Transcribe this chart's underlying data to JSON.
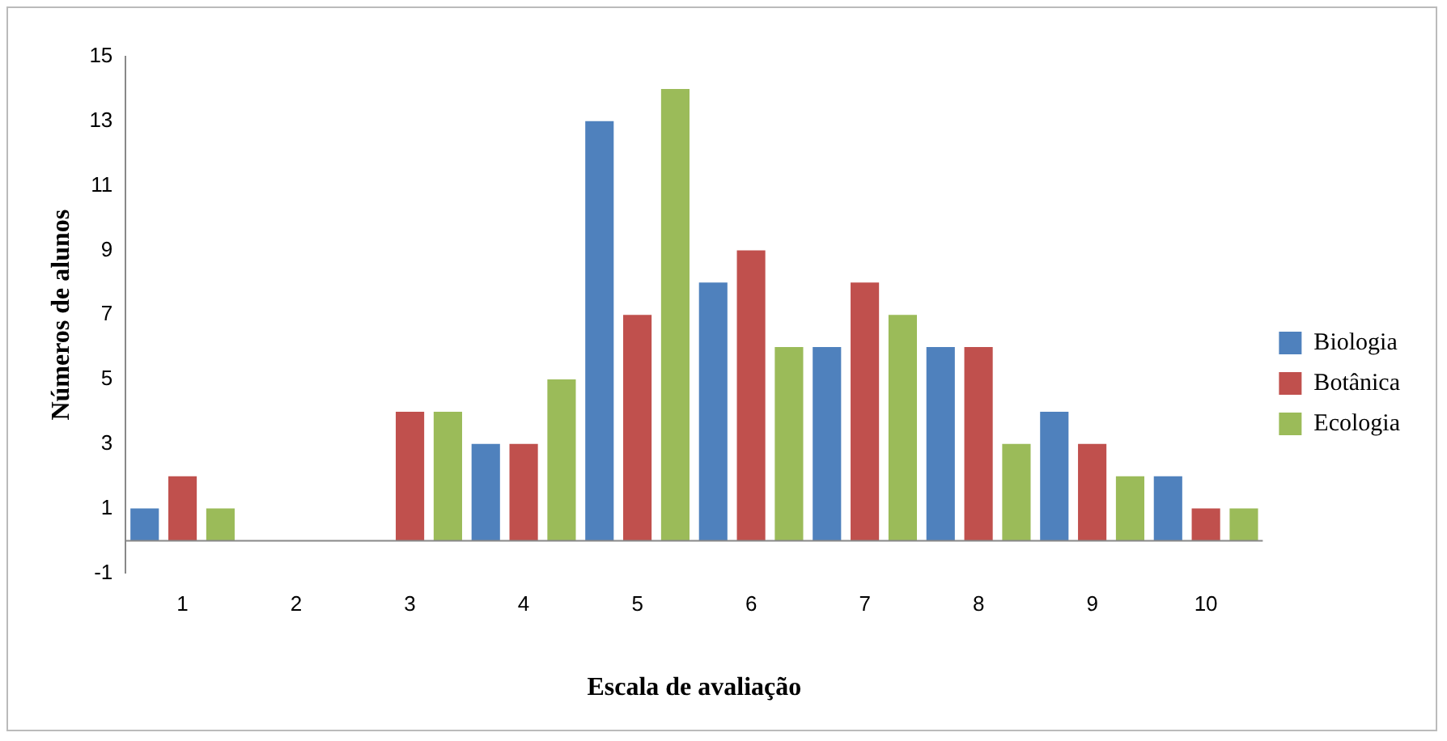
{
  "chart_data": {
    "type": "bar",
    "xlabel": "Escala de avaliação",
    "ylabel": "Números de alunos",
    "categories": [
      "1",
      "2",
      "3",
      "4",
      "5",
      "6",
      "7",
      "8",
      "9",
      "10"
    ],
    "series": [
      {
        "name": "Biologia",
        "color": "#4f81bd",
        "values": [
          1,
          0,
          0,
          3,
          13,
          8,
          6,
          6,
          4,
          2
        ]
      },
      {
        "name": "Botânica",
        "color": "#c0504d",
        "values": [
          2,
          0,
          4,
          3,
          7,
          9,
          8,
          6,
          3,
          1
        ]
      },
      {
        "name": "Ecologia",
        "color": "#9bbb59",
        "values": [
          1,
          0,
          4,
          5,
          14,
          6,
          7,
          3,
          2,
          1
        ]
      }
    ],
    "ylim": [
      -1,
      15
    ],
    "yticks": [
      -1,
      1,
      3,
      5,
      7,
      9,
      11,
      13,
      15
    ],
    "grid": false,
    "legend": "right"
  }
}
